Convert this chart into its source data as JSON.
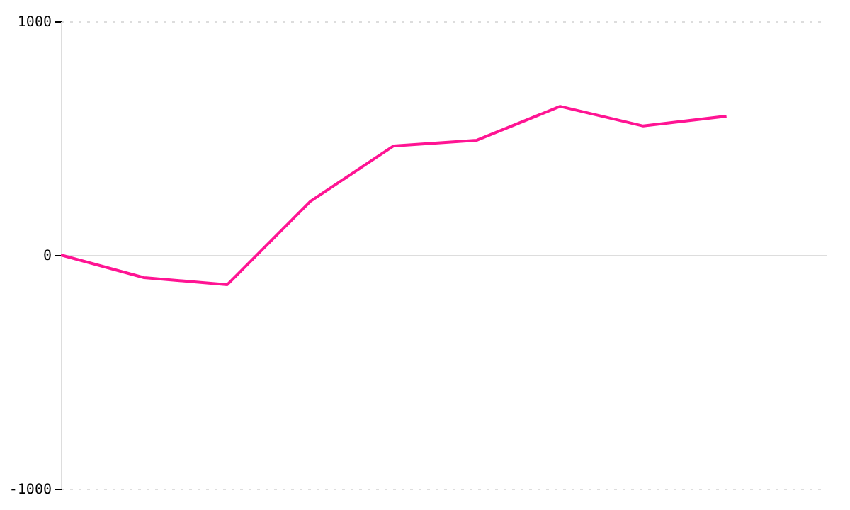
{
  "chart_data": {
    "type": "line",
    "categories": [
      null,
      null,
      null,
      null,
      null,
      null,
      null,
      null,
      null
    ],
    "series": [
      {
        "color": "#ff1493",
        "values": [
          0,
          -97,
          -127,
          230,
          467,
          491,
          636,
          552,
          594
        ]
      }
    ],
    "ylim": [
      -1000,
      1000
    ],
    "yticks": [
      -1000,
      0,
      1000
    ],
    "tick_labels": "y",
    "grid": "y",
    "marker": "none",
    "line_style": "solid"
  }
}
